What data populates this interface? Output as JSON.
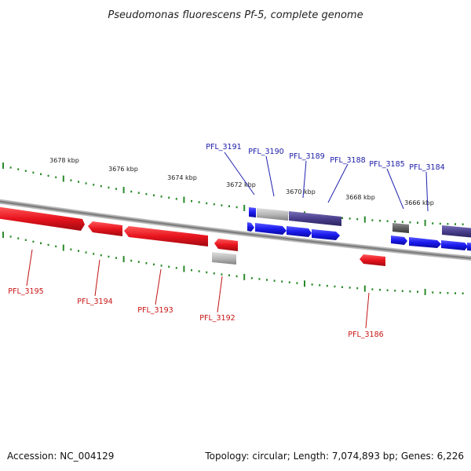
{
  "title": "Pseudomonas fluorescens Pf-5, complete genome",
  "footer": {
    "accession": "Accession: NC_004129",
    "summary": "Topology: circular; Length: 7,074,893 bp; Genes: 6,226"
  },
  "colors": {
    "forward_gene": "#1a1aee",
    "reverse_gene": "#e8141e",
    "tick_mark": "#2a8a2a",
    "backbone": "#8a8a8a",
    "dark_gene": "#4a3f8c",
    "gray_gene": "#b8b8b8",
    "forward_label": "#1a1aa8",
    "reverse_label": "#c81414"
  },
  "kbp_labels": [
    "3678 kbp",
    "3676 kbp",
    "3674 kbp",
    "3672 kbp",
    "3670 kbp",
    "3668 kbp",
    "3666 kbp"
  ],
  "forward_labels": [
    "PFL_3191",
    "PFL_3190",
    "PFL_3189",
    "PFL_3188",
    "PFL_3185",
    "PFL_3184"
  ],
  "reverse_labels": [
    "PFL_3195",
    "PFL_3194",
    "PFL_3193",
    "PFL_3192",
    "PFL_3186"
  ]
}
